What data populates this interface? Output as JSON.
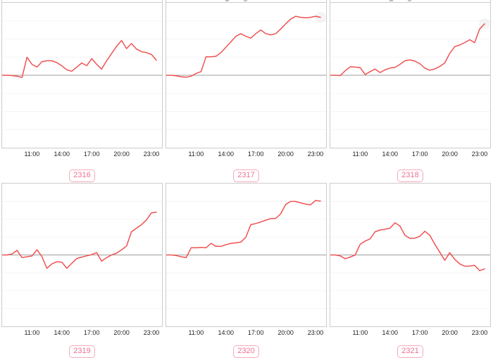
{
  "colors": {
    "line": "#f05252",
    "zero_line": "#9e9e9e",
    "grid_line": "#f5f5f5",
    "panel_border": "#cccccc",
    "tick_label": "#222222",
    "badge_text": "#ec7390",
    "badge_border": "#f5a9bd"
  },
  "x_ticks": [
    "11:00",
    "14:00",
    "17:00",
    "20:00",
    "23:00"
  ],
  "chart_data": [
    {
      "type": "line",
      "badge": "2316",
      "x_tick_labels": [
        "11:00",
        "14:00",
        "17:00",
        "20:00",
        "23:00"
      ],
      "x_start": "08:00",
      "x_step_minutes": 30,
      "ylim": [
        -4,
        4
      ],
      "baseline": 0,
      "grid": true,
      "values": [
        0,
        0,
        -0.02,
        -0.05,
        -0.12,
        1.0,
        0.6,
        0.45,
        0.75,
        0.8,
        0.8,
        0.7,
        0.52,
        0.3,
        0.22,
        0.45,
        0.68,
        0.53,
        0.92,
        0.6,
        0.34,
        0.8,
        1.2,
        1.6,
        1.92,
        1.47,
        1.75,
        1.45,
        1.3,
        1.25,
        1.15,
        0.83
      ],
      "has_cropped_title_mark": false,
      "end_halo": false
    },
    {
      "type": "line",
      "badge": "2317",
      "x_tick_labels": [
        "11:00",
        "14:00",
        "17:00",
        "20:00",
        "23:00"
      ],
      "x_start": "08:00",
      "x_step_minutes": 30,
      "ylim": [
        -4,
        4
      ],
      "baseline": 0,
      "grid": true,
      "values": [
        0,
        0,
        -0.03,
        -0.08,
        -0.11,
        -0.05,
        0.1,
        0.2,
        1.02,
        1.02,
        1.05,
        1.25,
        1.55,
        1.85,
        2.15,
        2.3,
        2.15,
        2.05,
        2.3,
        2.5,
        2.3,
        2.23,
        2.3,
        2.55,
        2.84,
        3.1,
        3.26,
        3.2,
        3.17,
        3.2,
        3.26,
        3.2
      ],
      "has_cropped_title_mark": true,
      "end_halo": true
    },
    {
      "type": "line",
      "badge": "2318",
      "x_tick_labels": [
        "11:00",
        "14:00",
        "17:00",
        "20:00",
        "23:00"
      ],
      "x_start": "08:00",
      "x_step_minutes": 30,
      "ylim": [
        -4,
        4
      ],
      "baseline": 0,
      "grid": true,
      "values": [
        0,
        0,
        -0.02,
        0.25,
        0.47,
        0.45,
        0.42,
        0.04,
        0.2,
        0.34,
        0.15,
        0.3,
        0.4,
        0.43,
        0.6,
        0.8,
        0.85,
        0.78,
        0.64,
        0.39,
        0.28,
        0.35,
        0.49,
        0.68,
        1.21,
        1.58,
        1.67,
        1.8,
        1.96,
        1.8,
        2.55,
        2.84
      ],
      "has_cropped_title_mark": true,
      "end_halo": true
    },
    {
      "type": "line",
      "badge": "2319",
      "x_tick_labels": [
        "11:00",
        "14:00",
        "17:00",
        "20:00",
        "23:00"
      ],
      "x_start": "08:00",
      "x_step_minutes": 30,
      "ylim": [
        -4,
        4
      ],
      "baseline": 0,
      "grid": true,
      "values": [
        0,
        0,
        0.05,
        0.26,
        -0.15,
        -0.1,
        -0.06,
        0.29,
        -0.09,
        -0.75,
        -0.5,
        -0.38,
        -0.4,
        -0.75,
        -0.47,
        -0.2,
        -0.12,
        -0.05,
        0.02,
        0.13,
        -0.35,
        -0.15,
        0,
        0.1,
        0.29,
        0.5,
        1.3,
        1.5,
        1.7,
        1.96,
        2.36,
        2.4
      ],
      "has_cropped_title_mark": false,
      "end_halo": false
    },
    {
      "type": "line",
      "badge": "2320",
      "x_tick_labels": [
        "11:00",
        "14:00",
        "17:00",
        "20:00",
        "23:00"
      ],
      "x_start": "08:00",
      "x_step_minutes": 30,
      "ylim": [
        -4,
        4
      ],
      "baseline": 0,
      "grid": true,
      "values": [
        0,
        0,
        -0.03,
        -0.1,
        -0.15,
        0.4,
        0.4,
        0.42,
        0.4,
        0.65,
        0.48,
        0.48,
        0.58,
        0.65,
        0.68,
        0.72,
        1.0,
        1.7,
        1.76,
        1.85,
        1.95,
        2.04,
        2.05,
        2.3,
        2.83,
        3.0,
        3.0,
        2.92,
        2.85,
        2.81,
        3.05,
        3.02
      ],
      "has_cropped_title_mark": false,
      "end_halo": false
    },
    {
      "type": "line",
      "badge": "2321",
      "x_tick_labels": [
        "11:00",
        "14:00",
        "17:00",
        "20:00",
        "23:00"
      ],
      "x_start": "08:00",
      "x_step_minutes": 30,
      "ylim": [
        -4,
        4
      ],
      "baseline": 0,
      "grid": true,
      "values": [
        0,
        0,
        -0.05,
        -0.21,
        -0.12,
        0,
        0.6,
        0.78,
        0.9,
        1.3,
        1.4,
        1.44,
        1.5,
        1.8,
        1.62,
        1.1,
        0.93,
        0.94,
        1.05,
        1.33,
        1.1,
        0.6,
        0.15,
        -0.3,
        0.13,
        -0.25,
        -0.5,
        -0.63,
        -0.62,
        -0.58,
        -0.88,
        -0.78
      ],
      "has_cropped_title_mark": false,
      "end_halo": false
    }
  ]
}
